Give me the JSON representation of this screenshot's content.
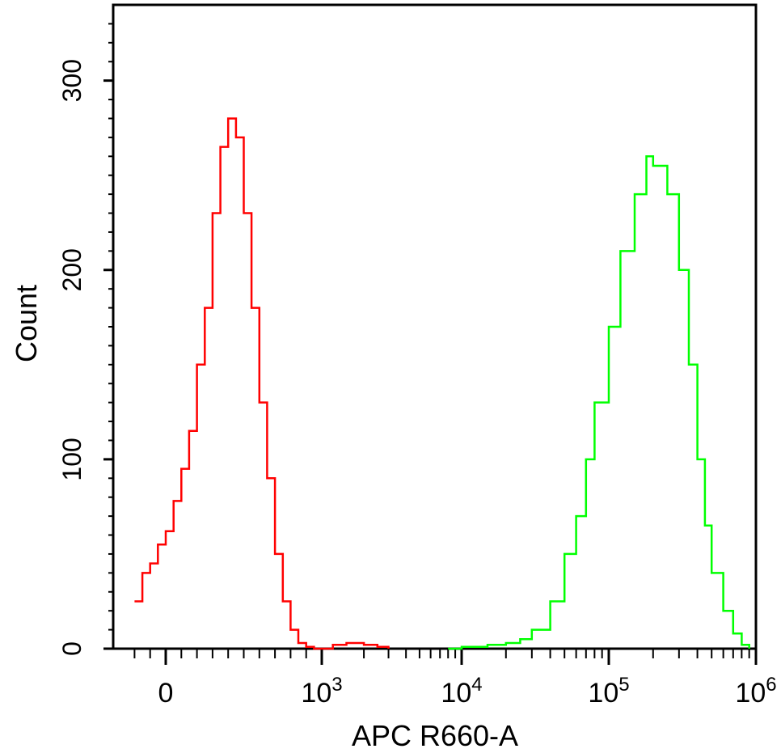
{
  "chart_data": {
    "type": "line",
    "title": "",
    "xlabel": "APC R660-A",
    "ylabel": "Count",
    "x_scale": "biexponential",
    "ylim": [
      0,
      340
    ],
    "x_ticks": [
      {
        "base": "0",
        "exp": ""
      },
      {
        "base": "10",
        "exp": "3"
      },
      {
        "base": "10",
        "exp": "4"
      },
      {
        "base": "10",
        "exp": "5"
      },
      {
        "base": "10",
        "exp": "6"
      }
    ],
    "y_ticks": [
      0,
      100,
      200,
      300
    ],
    "grid": false,
    "legend": "none",
    "series": [
      {
        "color": "#ff0000",
        "x": [
          -200,
          -150,
          -100,
          -50,
          0,
          50,
          100,
          150,
          200,
          250,
          300,
          350,
          400,
          450,
          500,
          550,
          600,
          650,
          700,
          750,
          800,
          850,
          900,
          950,
          1000,
          1200,
          1500,
          2000,
          2500,
          3000
        ],
        "y": [
          25,
          40,
          45,
          55,
          62,
          78,
          95,
          115,
          150,
          180,
          230,
          265,
          280,
          270,
          230,
          180,
          130,
          90,
          50,
          25,
          10,
          3,
          1,
          0,
          0,
          2,
          3,
          2,
          1,
          0
        ]
      },
      {
        "color": "#00ff00",
        "x": [
          8000,
          10000,
          15000,
          20000,
          25000,
          30000,
          40000,
          50000,
          60000,
          70000,
          80000,
          100000,
          120000,
          150000,
          180000,
          200000,
          250000,
          300000,
          350000,
          400000,
          450000,
          500000,
          600000,
          700000,
          800000,
          900000
        ],
        "y": [
          0,
          1,
          2,
          3,
          5,
          10,
          25,
          50,
          70,
          100,
          130,
          170,
          210,
          240,
          260,
          255,
          240,
          200,
          150,
          100,
          65,
          40,
          20,
          8,
          2,
          0
        ]
      }
    ]
  }
}
